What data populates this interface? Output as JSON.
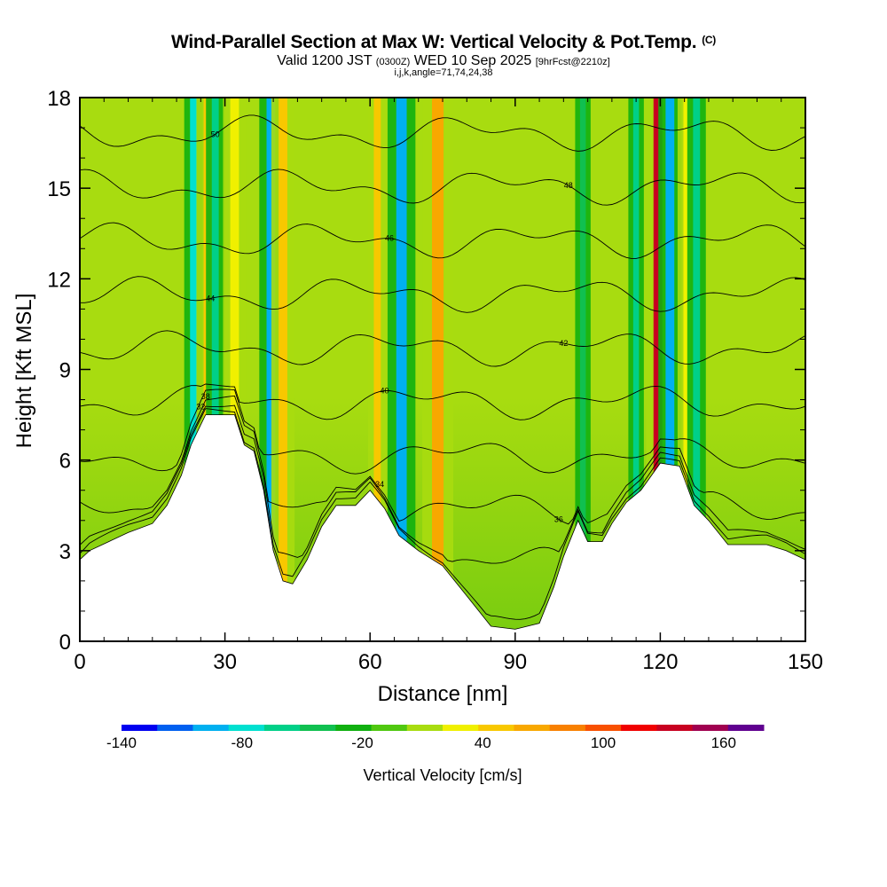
{
  "header": {
    "title": "Wind-Parallel Section at Max W: Vertical Velocity & Pot.Temp.",
    "title_mark": "(C)",
    "subtitle_main": "Valid 1200 JST",
    "subtitle_utc": "(0300Z)",
    "subtitle_date": "WED 10 Sep 2025",
    "subtitle_fcst": "[9hrFcst@2210z]",
    "subtitle2": "i,j,k,angle=71,74,24,38"
  },
  "chart_data": {
    "type": "heatmap",
    "xlabel": "Distance [nm]",
    "ylabel": "Height [Kft MSL]",
    "xlim": [
      0,
      150
    ],
    "ylim": [
      0,
      18
    ],
    "x_ticks": [
      0,
      30,
      60,
      90,
      120,
      150
    ],
    "y_ticks": [
      0,
      3,
      6,
      9,
      12,
      15,
      18
    ],
    "colorbar": {
      "label": "Vertical Velocity [cm/s]",
      "min": -140,
      "max": 180,
      "step": 20,
      "tick_values": [
        -140,
        -80,
        -20,
        40,
        100,
        160
      ],
      "colors": [
        "#0000f0",
        "#0060f0",
        "#00b0f0",
        "#00e0d0",
        "#00d088",
        "#10c050",
        "#10b010",
        "#50c810",
        "#a8dc10",
        "#f0f000",
        "#f8c800",
        "#f8a800",
        "#f88000",
        "#f85000",
        "#f00000",
        "#c80020",
        "#a00050",
        "#600090"
      ]
    },
    "theta_contours": {
      "unit": "C",
      "levels": [
        32,
        34,
        36,
        38,
        40,
        42,
        44,
        46,
        48,
        50,
        52
      ]
    },
    "terrain_kft": [
      [
        0,
        2.7
      ],
      [
        2,
        3.0
      ],
      [
        6,
        3.3
      ],
      [
        10,
        3.6
      ],
      [
        15,
        3.9
      ],
      [
        18,
        4.5
      ],
      [
        21,
        5.5
      ],
      [
        23,
        6.5
      ],
      [
        26,
        7.5
      ],
      [
        32,
        7.5
      ],
      [
        34,
        6.5
      ],
      [
        36,
        6.3
      ],
      [
        38,
        5.0
      ],
      [
        40,
        3.0
      ],
      [
        42,
        2.0
      ],
      [
        44,
        1.9
      ],
      [
        47,
        2.7
      ],
      [
        50,
        3.8
      ],
      [
        53,
        4.5
      ],
      [
        57,
        4.5
      ],
      [
        60,
        5.0
      ],
      [
        63,
        4.4
      ],
      [
        66,
        3.5
      ],
      [
        70,
        3.0
      ],
      [
        75,
        2.5
      ],
      [
        80,
        1.5
      ],
      [
        85,
        0.5
      ],
      [
        90,
        0.4
      ],
      [
        95,
        0.6
      ],
      [
        98,
        1.8
      ],
      [
        100,
        2.8
      ],
      [
        103,
        4.0
      ],
      [
        105,
        3.3
      ],
      [
        108,
        3.3
      ],
      [
        110,
        3.9
      ],
      [
        113,
        4.6
      ],
      [
        116,
        5.0
      ],
      [
        120,
        5.9
      ],
      [
        124,
        5.8
      ],
      [
        127,
        4.5
      ],
      [
        130,
        4.0
      ],
      [
        134,
        3.2
      ],
      [
        138,
        3.2
      ],
      [
        142,
        3.2
      ],
      [
        146,
        3.0
      ],
      [
        150,
        2.7
      ]
    ],
    "columns": [
      {
        "x": 23.5,
        "w": 1.2,
        "w_cms": -80
      },
      {
        "x": 26.5,
        "w": 1.5,
        "w_cms": 60
      },
      {
        "x": 28.0,
        "w": 1.2,
        "w_cms": -60
      },
      {
        "x": 32.0,
        "w": 1.5,
        "w_cms": 50
      },
      {
        "x": 39.5,
        "w": 1.5,
        "w_cms": -90
      },
      {
        "x": 42.0,
        "w": 1.5,
        "w_cms": 70
      },
      {
        "x": 61.5,
        "w": 1.2,
        "w_cms": 70
      },
      {
        "x": 66.5,
        "w": 1.8,
        "w_cms": -90
      },
      {
        "x": 74.0,
        "w": 2.0,
        "w_cms": 80
      },
      {
        "x": 104.0,
        "w": 1.0,
        "w_cms": -30
      },
      {
        "x": 115.0,
        "w": 1.0,
        "w_cms": -60
      },
      {
        "x": 119.5,
        "w": 1.5,
        "w_cms": 160
      },
      {
        "x": 122.0,
        "w": 1.5,
        "w_cms": -100
      },
      {
        "x": 125.5,
        "w": 1.2,
        "w_cms": 50
      },
      {
        "x": 127.5,
        "w": 1.2,
        "w_cms": -60
      }
    ]
  }
}
